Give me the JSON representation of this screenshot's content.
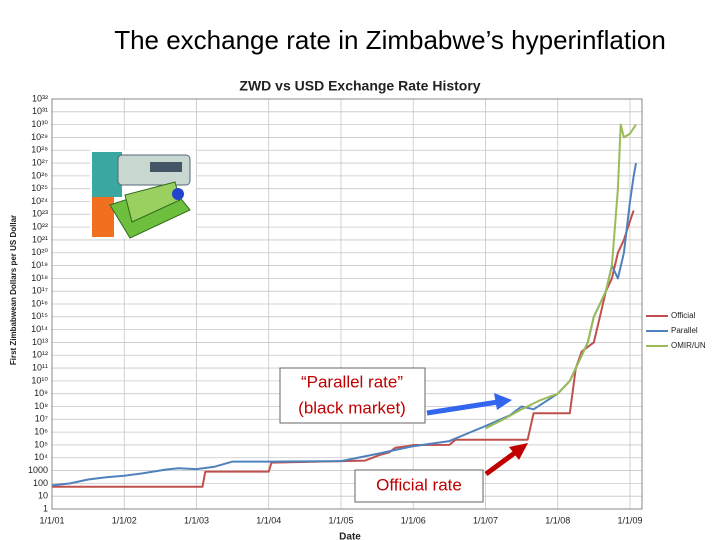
{
  "slide_title": "The exchange rate in Zimbabwe’s hyperinflation",
  "chart_data": {
    "type": "line",
    "title": "ZWD vs USD Exchange Rate History",
    "x_label": "Date",
    "y_label": "First Zimbabwean Dollars per US Dollar",
    "log_scale": true,
    "grid": true,
    "legend": "right",
    "xlim": [
      "1/1/01",
      "3/1/09"
    ],
    "xticks": [
      "1/1/01",
      "1/1/02",
      "1/1/03",
      "1/1/04",
      "1/1/05",
      "1/1/06",
      "1/1/07",
      "1/1/08",
      "1/1/09"
    ],
    "ylim": [
      1,
      1e+32
    ],
    "yticks": [
      1,
      10,
      100,
      1000,
      {
        "value": 10000.0,
        "label": "10⁴"
      },
      {
        "value": 100000.0,
        "label": "10⁵"
      },
      {
        "value": 1000000.0,
        "label": "10⁶"
      },
      {
        "value": 10000000.0,
        "label": "10⁷"
      },
      {
        "value": 100000000.0,
        "label": "10⁸"
      },
      {
        "value": 1000000000.0,
        "label": "10⁹"
      },
      {
        "value": 10000000000.0,
        "label": "10¹⁰"
      },
      {
        "value": 100000000000.0,
        "label": "10¹¹"
      },
      {
        "value": 1000000000000.0,
        "label": "10¹²"
      },
      {
        "value": 10000000000000.0,
        "label": "10¹³"
      },
      {
        "value": 100000000000000.0,
        "label": "10¹⁴"
      },
      {
        "value": 1000000000000000.0,
        "label": "10¹⁵"
      },
      {
        "value": 1e+16,
        "label": "10¹⁶"
      },
      {
        "value": 1e+17,
        "label": "10¹⁷"
      },
      {
        "value": 1e+18,
        "label": "10¹⁸"
      },
      {
        "value": 1e+19,
        "label": "10¹⁹"
      },
      {
        "value": 1e+20,
        "label": "10²⁰"
      },
      {
        "value": 1e+21,
        "label": "10²¹"
      },
      {
        "value": 1e+22,
        "label": "10²²"
      },
      {
        "value": 1e+23,
        "label": "10²³"
      },
      {
        "value": 1e+24,
        "label": "10²⁴"
      },
      {
        "value": 1e+25,
        "label": "10²⁵"
      },
      {
        "value": 1e+26,
        "label": "10²⁶"
      },
      {
        "value": 1e+27,
        "label": "10²⁷"
      },
      {
        "value": 1e+28,
        "label": "10²⁸"
      },
      {
        "value": 1e+29,
        "label": "10²⁹"
      },
      {
        "value": 1e+30,
        "label": "10³⁰"
      },
      {
        "value": 1e+31,
        "label": "10³¹"
      },
      {
        "value": 1e+32,
        "label": "10³²"
      }
    ],
    "series": [
      {
        "name": "Official",
        "color": "#c0504d",
        "x": [
          "1/1/01",
          "2/1/03",
          "2/15/03",
          "1/1/04",
          "1/15/04",
          "5/1/05",
          "7/20/05",
          "9/1/05",
          "10/1/05",
          "12/1/05",
          "1/1/06",
          "7/1/06",
          "8/1/06",
          "8/1/07",
          "9/1/07",
          "3/1/08",
          "4/1/08",
          "5/1/08",
          "7/1/08",
          "8/1/08",
          "9/1/08",
          "10/1/08",
          "11/1/08",
          "12/1/08",
          "1/1/09",
          "1/20/09"
        ],
        "values": [
          55,
          55,
          824,
          824,
          4200,
          6000,
          17500,
          26000,
          60000,
          80000,
          99000,
          101000,
          250000,
          250000,
          30000000,
          30000000,
          100000000000.0,
          2000000000000.0,
          10000000000000.0,
          1000000000000000.0,
          1e+17,
          1e+18,
          1e+20,
          1e+21,
          3e+22,
          2e+23
        ]
      },
      {
        "name": "Parallel",
        "color": "#4f81bd",
        "x": [
          "1/1/01",
          "4/1/01",
          "7/1/01",
          "10/1/01",
          "1/1/02",
          "4/1/02",
          "8/1/02",
          "10/1/02",
          "1/1/03",
          "4/1/03",
          "7/1/03",
          "1/1/04",
          "1/1/05",
          "7/1/05",
          "1/1/06",
          "7/1/06",
          "1/1/07",
          "5/1/07",
          "7/1/07",
          "9/1/07",
          "1/1/08",
          "3/1/08",
          "4/1/08",
          "6/1/08",
          "7/1/08",
          "8/1/08",
          "9/1/08",
          "10/1/08",
          "11/1/08",
          "12/1/08",
          "1/1/09",
          "1/20/09",
          "2/1/09"
        ],
        "values": [
          70,
          100,
          200,
          300,
          400,
          600,
          1200,
          1500,
          1300,
          2000,
          5000,
          5000,
          5500,
          20000,
          80000,
          200000,
          3000000,
          20000000,
          100000000,
          60000000,
          1000000000.0,
          10000000000.0,
          100000000000.0,
          10000000000000.0,
          1000000000000000.0,
          1e+16,
          1e+17,
          1e+19,
          1e+18,
          1e+20,
          1e+24,
          1e+26,
          1e+27
        ]
      },
      {
        "name": "OMIR/UN",
        "color": "#9bbb59",
        "x": [
          "1/1/07",
          "4/1/07",
          "7/1/07",
          "10/1/07",
          "1/1/08",
          "3/1/08",
          "4/1/08",
          "6/1/08",
          "7/1/08",
          "8/1/08",
          "9/1/08",
          "10/1/08",
          "11/1/08",
          "11/15/08",
          "12/1/08",
          "1/1/09",
          "2/1/09"
        ],
        "values": [
          2000000,
          10000000,
          60000000,
          300000000,
          1000000000.0,
          10000000000.0,
          100000000000.0,
          10000000000000.0,
          1000000000000000.0,
          1e+16,
          1e+17,
          1e+19,
          1e+25,
          1e+30,
          1e+29,
          2e+29,
          1e+30
        ]
      }
    ],
    "annotations": [
      "“Parallel rate”",
      "(black market)",
      "Official rate"
    ]
  }
}
